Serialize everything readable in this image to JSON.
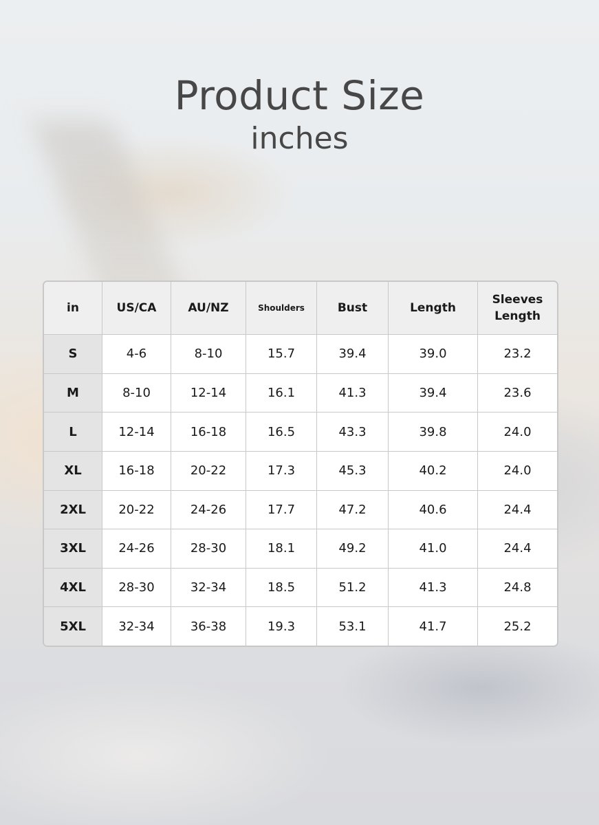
{
  "header": {
    "title": "Product Size",
    "subtitle": "inches"
  },
  "table": {
    "columns": [
      "in",
      "US/CA",
      "AU/NZ",
      "Shoulders",
      "Bust",
      "Length",
      "Sleeves Length"
    ],
    "rows": [
      [
        "S",
        "4-6",
        "8-10",
        "15.7",
        "39.4",
        "39.0",
        "23.2"
      ],
      [
        "M",
        "8-10",
        "12-14",
        "16.1",
        "41.3",
        "39.4",
        "23.6"
      ],
      [
        "L",
        "12-14",
        "16-18",
        "16.5",
        "43.3",
        "39.8",
        "24.0"
      ],
      [
        "XL",
        "16-18",
        "20-22",
        "17.3",
        "45.3",
        "40.2",
        "24.0"
      ],
      [
        "2XL",
        "20-22",
        "24-26",
        "17.7",
        "47.2",
        "40.6",
        "24.4"
      ],
      [
        "3XL",
        "24-26",
        "28-30",
        "18.1",
        "49.2",
        "41.0",
        "24.4"
      ],
      [
        "4XL",
        "28-30",
        "32-34",
        "18.5",
        "51.2",
        "41.3",
        "24.8"
      ],
      [
        "5XL",
        "32-34",
        "36-38",
        "19.3",
        "53.1",
        "41.7",
        "25.2"
      ]
    ]
  }
}
